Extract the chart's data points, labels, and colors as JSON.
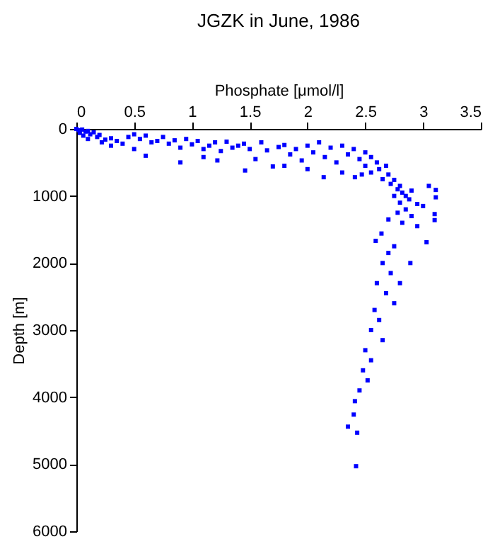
{
  "chart_data": {
    "type": "scatter",
    "title": "JGZK in June, 1986",
    "xlabel": "Phosphate [μmol/l]",
    "ylabel": "Depth [m]",
    "x": [
      0.0,
      0.02,
      0.05,
      0.08,
      0.03,
      0.1,
      0.12,
      0.06,
      0.15,
      0.18,
      0.1,
      0.2,
      0.25,
      0.22,
      0.3,
      0.35,
      0.3,
      0.4,
      0.45,
      0.5,
      0.55,
      0.5,
      0.6,
      0.65,
      0.6,
      0.7,
      0.75,
      0.8,
      0.85,
      0.9,
      0.9,
      0.95,
      1.0,
      1.05,
      1.1,
      1.1,
      1.15,
      1.2,
      1.22,
      1.25,
      1.3,
      1.35,
      1.4,
      1.45,
      1.46,
      1.5,
      1.55,
      1.6,
      1.65,
      1.7,
      1.75,
      1.8,
      1.8,
      1.85,
      1.9,
      1.95,
      2.0,
      2.0,
      2.05,
      2.1,
      2.14,
      2.15,
      2.2,
      2.25,
      2.3,
      2.3,
      2.35,
      2.4,
      2.41,
      2.45,
      2.47,
      2.5,
      2.5,
      2.55,
      2.55,
      2.6,
      2.62,
      2.65,
      2.68,
      2.7,
      2.72,
      2.75,
      2.78,
      2.8,
      2.82,
      2.85,
      2.88,
      2.9,
      2.75,
      2.8,
      2.95,
      2.85,
      2.78,
      2.9,
      3.0,
      3.05,
      3.11,
      3.11,
      3.1,
      3.1,
      2.7,
      2.82,
      2.95,
      3.03,
      2.59,
      2.64,
      2.75,
      2.7,
      2.89,
      2.65,
      2.72,
      2.8,
      2.6,
      2.68,
      2.75,
      2.58,
      2.62,
      2.55,
      2.65,
      2.5,
      2.55,
      2.48,
      2.52,
      2.45,
      2.41,
      2.4,
      2.35,
      2.43,
      2.42
    ],
    "series": [
      {
        "color": "#0000ff",
        "values": [
          0,
          20,
          10,
          40,
          60,
          30,
          80,
          100,
          50,
          120,
          150,
          90,
          160,
          200,
          140,
          180,
          250,
          220,
          120,
          80,
          150,
          300,
          100,
          200,
          400,
          180,
          120,
          220,
          170,
          280,
          500,
          150,
          230,
          180,
          300,
          420,
          250,
          200,
          470,
          330,
          190,
          280,
          250,
          220,
          620,
          300,
          450,
          200,
          320,
          560,
          270,
          240,
          550,
          380,
          300,
          470,
          250,
          600,
          350,
          200,
          720,
          420,
          280,
          500,
          250,
          650,
          380,
          300,
          720,
          450,
          680,
          350,
          550,
          420,
          650,
          500,
          600,
          750,
          550,
          680,
          820,
          760,
          900,
          850,
          950,
          1000,
          1050,
          920,
          1000,
          1100,
          1120,
          1200,
          1250,
          1300,
          1150,
          850,
          910,
          1020,
          1270,
          1360,
          1350,
          1400,
          1450,
          1690,
          1670,
          1560,
          1750,
          1850,
          2000,
          2000,
          2150,
          2300,
          2300,
          2450,
          2600,
          2700,
          2850,
          3000,
          3150,
          3300,
          3450,
          3600,
          3750,
          3900,
          4060,
          4260,
          4440,
          4530,
          5030
        ]
      }
    ],
    "xlim": [
      0,
      3.5
    ],
    "xticks": [
      0,
      0.5,
      1,
      1.5,
      2,
      2.5,
      3,
      3.5
    ],
    "ylim": [
      6000,
      0
    ],
    "yticks": [
      0,
      1000,
      2000,
      3000,
      4000,
      5000,
      6000
    ],
    "marker": "square",
    "grid": false
  }
}
